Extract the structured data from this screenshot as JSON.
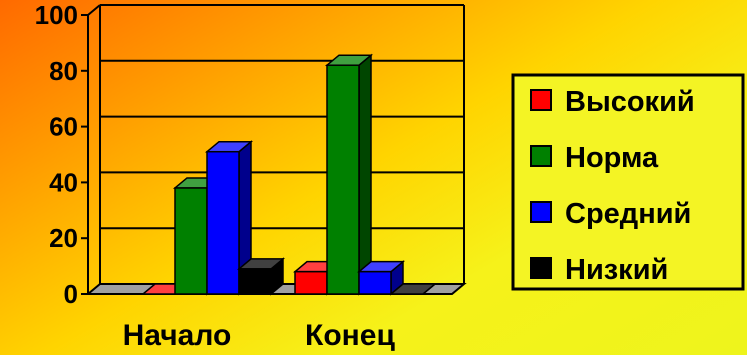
{
  "chart_data": {
    "type": "bar",
    "categories": [
      "Начало",
      "Конец"
    ],
    "series": [
      {
        "name": "Высокий",
        "values": [
          0,
          8
        ],
        "color": "#ff0000"
      },
      {
        "name": "Норма",
        "values": [
          38,
          82
        ],
        "color": "#008000"
      },
      {
        "name": "Средний",
        "values": [
          51,
          8
        ],
        "color": "#0000ff"
      },
      {
        "name": "Низкий",
        "values": [
          9,
          0
        ],
        "color": "#000000"
      }
    ],
    "y_ticks": [
      "0",
      "20",
      "40",
      "60",
      "80",
      "100"
    ],
    "ylim": [
      0,
      100
    ],
    "grid": true,
    "legend_position": "right",
    "style": "3d-column"
  }
}
